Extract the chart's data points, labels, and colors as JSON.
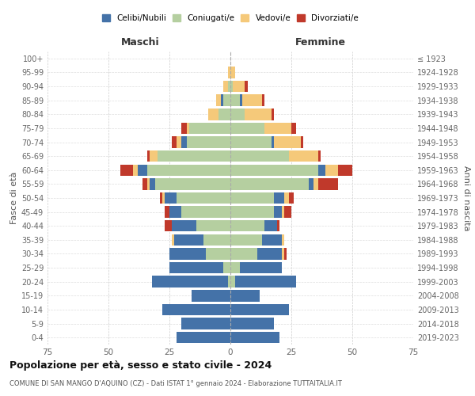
{
  "age_groups": [
    "0-4",
    "5-9",
    "10-14",
    "15-19",
    "20-24",
    "25-29",
    "30-34",
    "35-39",
    "40-44",
    "45-49",
    "50-54",
    "55-59",
    "60-64",
    "65-69",
    "70-74",
    "75-79",
    "80-84",
    "85-89",
    "90-94",
    "95-99",
    "100+"
  ],
  "birth_years": [
    "2019-2023",
    "2014-2018",
    "2009-2013",
    "2004-2008",
    "1999-2003",
    "1994-1998",
    "1989-1993",
    "1984-1988",
    "1979-1983",
    "1974-1978",
    "1969-1973",
    "1964-1968",
    "1959-1963",
    "1954-1958",
    "1949-1953",
    "1944-1948",
    "1939-1943",
    "1934-1938",
    "1929-1933",
    "1924-1928",
    "≤ 1923"
  ],
  "maschi": {
    "celibi": [
      22,
      20,
      28,
      16,
      31,
      22,
      15,
      12,
      10,
      5,
      5,
      2,
      4,
      0,
      2,
      0,
      0,
      1,
      0,
      0,
      0
    ],
    "coniugati": [
      0,
      0,
      0,
      0,
      1,
      3,
      10,
      11,
      14,
      20,
      22,
      31,
      34,
      30,
      18,
      17,
      5,
      3,
      1,
      0,
      0
    ],
    "vedovi": [
      0,
      0,
      0,
      0,
      0,
      0,
      0,
      1,
      0,
      0,
      1,
      1,
      2,
      3,
      2,
      1,
      4,
      2,
      2,
      1,
      0
    ],
    "divorziati": [
      0,
      0,
      0,
      0,
      0,
      0,
      0,
      0,
      3,
      2,
      1,
      2,
      5,
      1,
      2,
      2,
      0,
      0,
      0,
      0,
      0
    ]
  },
  "femmine": {
    "nubili": [
      20,
      18,
      24,
      12,
      25,
      17,
      10,
      8,
      5,
      3,
      4,
      2,
      3,
      0,
      1,
      0,
      0,
      1,
      0,
      0,
      0
    ],
    "coniugate": [
      0,
      0,
      0,
      0,
      2,
      4,
      11,
      13,
      14,
      18,
      18,
      32,
      36,
      24,
      17,
      14,
      6,
      4,
      1,
      0,
      0
    ],
    "vedove": [
      0,
      0,
      0,
      0,
      0,
      0,
      1,
      1,
      0,
      1,
      2,
      2,
      5,
      12,
      11,
      11,
      11,
      8,
      5,
      2,
      0
    ],
    "divorziate": [
      0,
      0,
      0,
      0,
      0,
      0,
      1,
      0,
      1,
      3,
      2,
      8,
      6,
      1,
      1,
      2,
      1,
      1,
      1,
      0,
      0
    ]
  },
  "colors": {
    "celibi": "#4472a8",
    "coniugati": "#b5cfa0",
    "vedovi": "#f5c97a",
    "divorziati": "#c0392b"
  },
  "xlim": 75,
  "title": "Popolazione per età, sesso e stato civile - 2024",
  "subtitle": "COMUNE DI SAN MANGO D'AQUINO (CZ) - Dati ISTAT 1° gennaio 2024 - Elaborazione TUTTAITALIA.IT",
  "ylabel_left": "Fasce di età",
  "ylabel_right": "Anni di nascita",
  "xlabel_maschi": "Maschi",
  "xlabel_femmine": "Femmine",
  "legend_labels": [
    "Celibi/Nubili",
    "Coniugati/e",
    "Vedovi/e",
    "Divorziati/e"
  ]
}
